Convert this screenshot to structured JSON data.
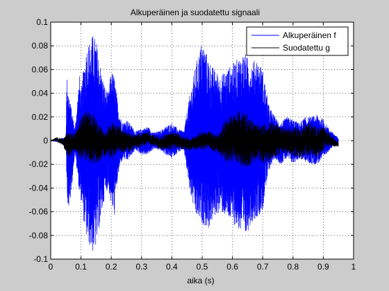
{
  "figure": {
    "background": "#cccccc"
  },
  "chart_data": {
    "type": "line",
    "title": "Alkuperäinen ja suodatettu signaali",
    "xlabel": "aika (s)",
    "ylabel": "",
    "xlim": [
      0,
      1
    ],
    "ylim": [
      -0.1,
      0.1
    ],
    "xticks": [
      "0",
      "0.1",
      "0.2",
      "0.3",
      "0.4",
      "0.5",
      "0.6",
      "0.7",
      "0.8",
      "0.9",
      "1"
    ],
    "yticks": [
      "0.1",
      "0.08",
      "0.06",
      "0.04",
      "0.02",
      "0",
      "-0.02",
      "-0.04",
      "-0.06",
      "-0.08",
      "-0.1"
    ],
    "grid": true,
    "legend_position": "top-right",
    "series": [
      {
        "name": "Alkuperäinen f",
        "color": "#0000ff",
        "x": [
          0.0,
          0.05,
          0.053,
          0.06,
          0.08,
          0.095,
          0.1,
          0.11,
          0.12,
          0.13,
          0.14,
          0.15,
          0.16,
          0.17,
          0.18,
          0.19,
          0.2,
          0.21,
          0.22,
          0.23,
          0.24,
          0.25,
          0.26,
          0.28,
          0.3,
          0.32,
          0.34,
          0.36,
          0.38,
          0.4,
          0.42,
          0.44,
          0.46,
          0.48,
          0.5,
          0.52,
          0.54,
          0.56,
          0.58,
          0.6,
          0.62,
          0.64,
          0.66,
          0.68,
          0.7,
          0.72,
          0.74,
          0.76,
          0.78,
          0.8,
          0.82,
          0.84,
          0.86,
          0.88,
          0.9,
          0.92,
          0.94,
          0.95
        ],
        "envelope_max": [
          0.0,
          0.003,
          0.055,
          0.04,
          0.01,
          0.055,
          0.04,
          0.065,
          0.08,
          0.085,
          0.09,
          0.085,
          0.07,
          0.055,
          0.045,
          0.04,
          0.06,
          0.055,
          0.035,
          0.02,
          0.015,
          0.018,
          0.015,
          0.008,
          0.01,
          0.012,
          0.007,
          0.008,
          0.012,
          0.015,
          0.01,
          0.008,
          0.04,
          0.065,
          0.085,
          0.07,
          0.06,
          0.055,
          0.06,
          0.065,
          0.07,
          0.075,
          0.065,
          0.07,
          0.06,
          0.03,
          0.02,
          0.015,
          0.02,
          0.018,
          0.015,
          0.02,
          0.02,
          0.022,
          0.018,
          0.01,
          0.005,
          0.002
        ],
        "envelope_min": [
          0.0,
          -0.003,
          -0.04,
          -0.065,
          -0.01,
          -0.045,
          -0.05,
          -0.07,
          -0.085,
          -0.09,
          -0.095,
          -0.09,
          -0.075,
          -0.06,
          -0.045,
          -0.04,
          -0.055,
          -0.065,
          -0.035,
          -0.02,
          -0.015,
          -0.018,
          -0.015,
          -0.008,
          -0.012,
          -0.012,
          -0.007,
          -0.008,
          -0.012,
          -0.015,
          -0.01,
          -0.008,
          -0.045,
          -0.065,
          -0.07,
          -0.075,
          -0.065,
          -0.06,
          -0.065,
          -0.07,
          -0.075,
          -0.085,
          -0.07,
          -0.065,
          -0.06,
          -0.025,
          -0.015,
          -0.02,
          -0.015,
          -0.02,
          -0.015,
          -0.018,
          -0.02,
          -0.02,
          -0.015,
          -0.008,
          -0.004,
          -0.002
        ]
      },
      {
        "name": "Suodatettu g",
        "color": "#000000",
        "x": [
          0.0,
          0.02,
          0.04,
          0.06,
          0.08,
          0.1,
          0.12,
          0.14,
          0.16,
          0.18,
          0.2,
          0.22,
          0.24,
          0.26,
          0.28,
          0.3,
          0.32,
          0.34,
          0.36,
          0.38,
          0.4,
          0.42,
          0.44,
          0.46,
          0.48,
          0.5,
          0.52,
          0.54,
          0.56,
          0.58,
          0.6,
          0.62,
          0.64,
          0.66,
          0.68,
          0.7,
          0.72,
          0.74,
          0.76,
          0.78,
          0.8,
          0.82,
          0.84,
          0.86,
          0.88,
          0.9,
          0.92,
          0.94,
          0.95
        ],
        "values": [
          0.0,
          0.001,
          -0.001,
          -0.004,
          -0.002,
          0.002,
          0.004,
          0.001,
          -0.002,
          -0.003,
          0.0,
          0.002,
          0.0,
          -0.002,
          -0.001,
          0.001,
          0.002,
          0.0,
          -0.002,
          -0.001,
          0.0,
          0.0,
          -0.002,
          -0.003,
          -0.001,
          0.0,
          0.001,
          -0.002,
          -0.003,
          0.001,
          0.002,
          0.003,
          0.001,
          -0.001,
          -0.002,
          -0.003,
          -0.001,
          0.0,
          0.001,
          0.0,
          -0.001,
          -0.002,
          0.0,
          0.001,
          -0.002,
          0.002,
          0.001,
          -0.002,
          -0.003
        ],
        "noise_amplitude": [
          0.0,
          0.002,
          0.003,
          0.012,
          0.008,
          0.018,
          0.022,
          0.022,
          0.016,
          0.01,
          0.016,
          0.012,
          0.01,
          0.008,
          0.006,
          0.006,
          0.006,
          0.005,
          0.005,
          0.007,
          0.008,
          0.006,
          0.006,
          0.005,
          0.006,
          0.008,
          0.008,
          0.008,
          0.01,
          0.02,
          0.02,
          0.022,
          0.026,
          0.02,
          0.016,
          0.016,
          0.018,
          0.014,
          0.012,
          0.012,
          0.012,
          0.014,
          0.014,
          0.014,
          0.014,
          0.01,
          0.006,
          0.003,
          0.002
        ]
      }
    ]
  }
}
